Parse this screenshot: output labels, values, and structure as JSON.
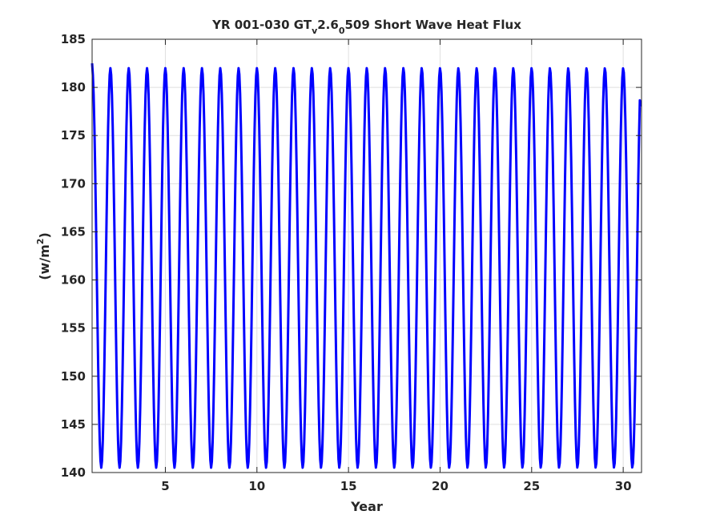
{
  "chart_data": {
    "type": "line",
    "title": {
      "prefix": "YR 001-030 GT",
      "sub1": "v",
      "mid": "2.6",
      "sub2": "0",
      "suffix": "509 Short Wave Heat Flux"
    },
    "xlabel": "Year",
    "ylabel": {
      "base": "(w/m",
      "sup": "2",
      "close": ")"
    },
    "xlim": [
      1,
      31
    ],
    "ylim": [
      140,
      185
    ],
    "xticks": [
      5,
      10,
      15,
      20,
      25,
      30
    ],
    "yticks": [
      140,
      145,
      150,
      155,
      160,
      165,
      170,
      175,
      180,
      185
    ],
    "grid": true,
    "series": [
      {
        "color": "#0000ff",
        "line_width": 3,
        "start_year": 1,
        "end_year": 30.95,
        "samples_per_year": 24,
        "cycle": {
          "period_years": 1,
          "max": 182,
          "min": 140.5,
          "phase_of_max": 0.0,
          "first_value": 182.5,
          "last_value": 178
        }
      }
    ]
  }
}
